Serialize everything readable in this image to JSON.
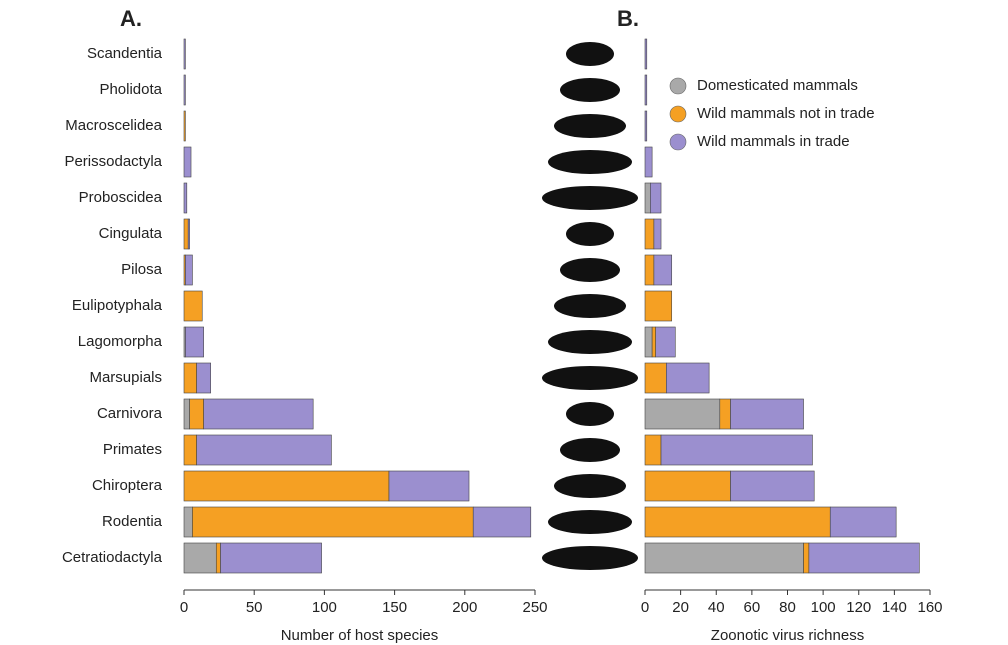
{
  "chart_data": [
    {
      "type": "bar",
      "orientation": "horizontal",
      "stacked": true,
      "panel_label": "A.",
      "xlabel": "Number of host species",
      "categories": [
        "Scandentia",
        "Pholidota",
        "Macroscelidea",
        "Perissodactyla",
        "Proboscidea",
        "Cingulata",
        "Pilosa",
        "Eulipotyphala",
        "Lagomorpha",
        "Marsupials",
        "Carnivora",
        "Primates",
        "Chiroptera",
        "Rodentia",
        "Cetratiodactyla"
      ],
      "series": [
        {
          "color": "#a9a9a9",
          "values": [
            0,
            0,
            0,
            0,
            0,
            0,
            0,
            0,
            1,
            0,
            4,
            0,
            0,
            6,
            23
          ]
        },
        {
          "color": "#f5a023",
          "values": [
            0,
            0,
            1,
            0,
            0,
            3,
            1,
            13,
            0,
            9,
            10,
            9,
            146,
            200,
            3
          ]
        },
        {
          "color": "#9b8fcf",
          "values": [
            1,
            1,
            0,
            5,
            2,
            1,
            5,
            0,
            13,
            10,
            78,
            96,
            57,
            41,
            72
          ]
        }
      ],
      "xlim": [
        0,
        250
      ],
      "xticks": [
        0,
        50,
        100,
        150,
        200,
        250
      ]
    },
    {
      "type": "bar",
      "orientation": "horizontal",
      "stacked": true,
      "panel_label": "B.",
      "xlabel": "Zoonotic virus richness",
      "series": [
        {
          "name": "Domesticated mammals",
          "color": "#a9a9a9",
          "values": [
            0,
            0,
            0,
            0,
            3,
            0,
            0,
            0,
            4,
            0,
            42,
            0,
            0,
            0,
            89
          ]
        },
        {
          "name": "Wild mammals not in trade",
          "color": "#f5a023",
          "values": [
            0,
            0,
            0,
            0,
            0,
            5,
            5,
            15,
            2,
            12,
            6,
            9,
            48,
            104,
            3
          ]
        },
        {
          "name": "Wild mammals in trade",
          "color": "#9b8fcf",
          "values": [
            1,
            1,
            1,
            4,
            6,
            4,
            10,
            0,
            11,
            24,
            41,
            85,
            47,
            37,
            62
          ]
        }
      ],
      "xlim": [
        0,
        160
      ],
      "xticks": [
        0,
        20,
        40,
        60,
        80,
        100,
        120,
        140,
        160
      ],
      "legend": "upper right"
    }
  ]
}
